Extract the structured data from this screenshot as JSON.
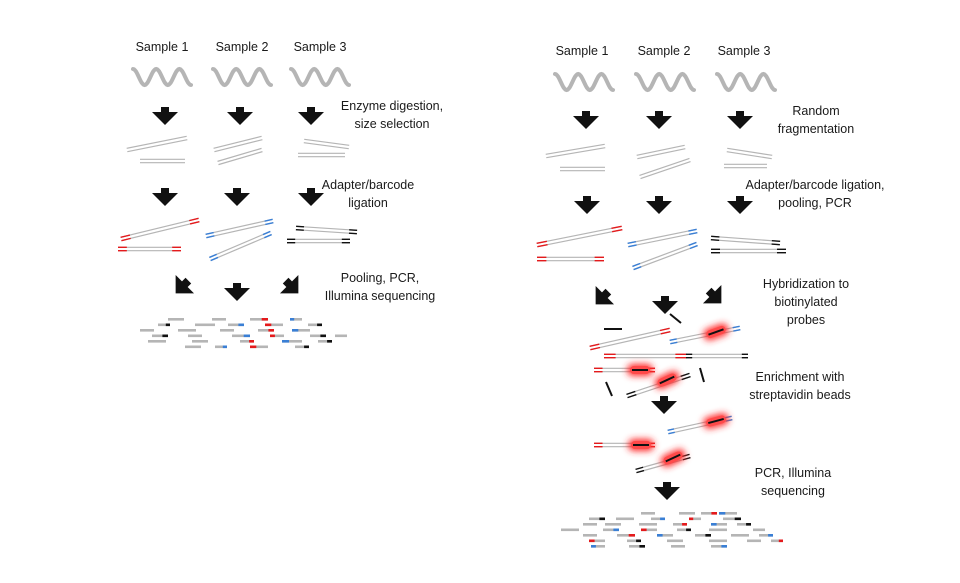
{
  "colors": {
    "gray": "#b5b5b5",
    "black": "#111111",
    "red": "#e41a1c",
    "blue": "#3a7fd5",
    "glow": "#ff2a2a"
  },
  "left": {
    "samples": [
      "Sample 1",
      "Sample 2",
      "Sample 3"
    ],
    "steps": [
      [
        "Enzyme digestion,",
        "size selection"
      ],
      [
        "Adapter/barcode",
        "ligation"
      ],
      [
        "Pooling, PCR,",
        "Illumina sequencing"
      ]
    ]
  },
  "right": {
    "samples": [
      "Sample 1",
      "Sample 2",
      "Sample 3"
    ],
    "steps": [
      [
        "Random",
        "fragmentation"
      ],
      [
        "Adapter/barcode ligation,",
        "pooling, PCR"
      ],
      [
        "Hybridization to",
        "biotinylated",
        "probes"
      ],
      [
        "Enrichment with",
        "streptavidin beads"
      ],
      [
        "PCR, Illumina",
        "sequencing"
      ]
    ]
  }
}
